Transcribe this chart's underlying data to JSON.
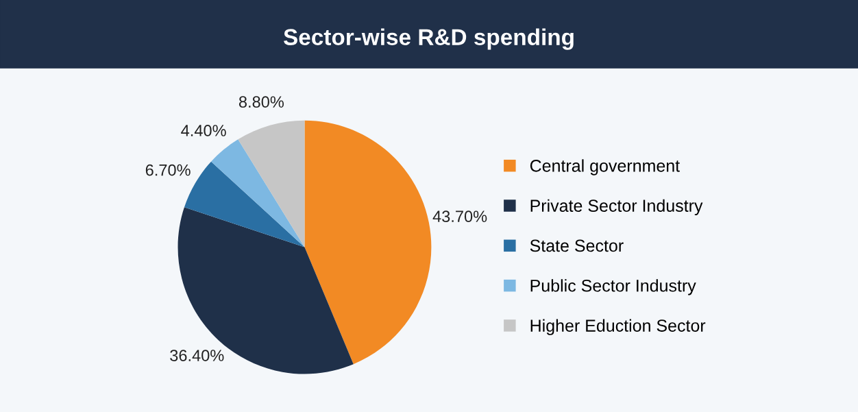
{
  "chart_data": {
    "type": "pie",
    "title": "Sector-wise R&D spending",
    "categories": [
      "Central government",
      "Private Sector Industry",
      "State Sector",
      "Public Sector Industry",
      "Higher Eduction Sector"
    ],
    "values": [
      43.7,
      36.4,
      6.7,
      4.4,
      8.8
    ],
    "colors": [
      "#f28a24",
      "#1f3049",
      "#2a6fa3",
      "#7db8e2",
      "#c6c6c6"
    ],
    "value_labels": [
      "43.70%",
      "36.40%",
      "6.70%",
      "4.40%",
      "8.80%"
    ],
    "legend": "right"
  }
}
